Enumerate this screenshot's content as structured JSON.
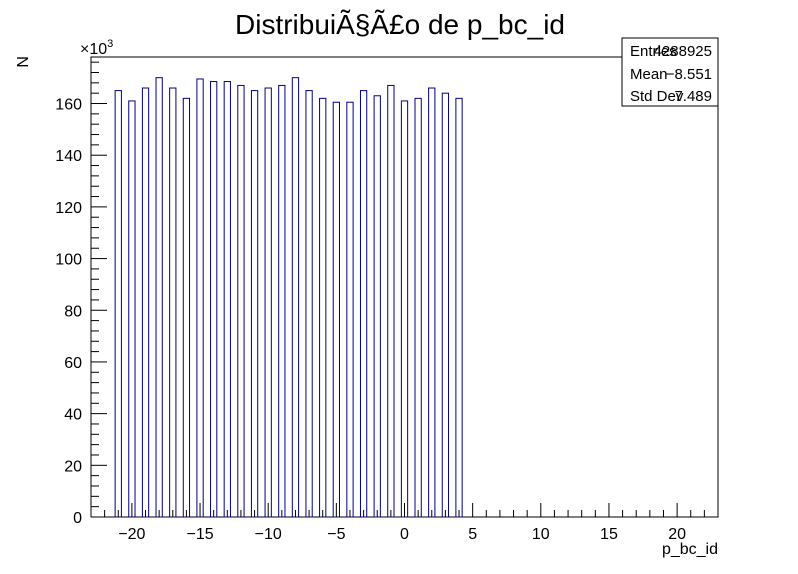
{
  "chart_data": {
    "type": "bar",
    "title": "DistribuiÃ§Ã£o de p_bc_id",
    "xlabel": "p_bc_id",
    "ylabel": "N",
    "y_exponent_label": "×10",
    "y_exponent_power": "3",
    "xlim": [
      -23,
      23
    ],
    "ylim": [
      0,
      178
    ],
    "x_ticks": [
      -20,
      -15,
      -10,
      -5,
      0,
      5,
      10,
      15,
      20
    ],
    "x_tick_labels": [
      "−20",
      "−15",
      "−10",
      "−5",
      "0",
      "5",
      "10",
      "15",
      "20"
    ],
    "y_ticks": [
      0,
      20,
      40,
      60,
      80,
      100,
      120,
      140,
      160
    ],
    "y_tick_labels": [
      "0",
      "20",
      "40",
      "60",
      "80",
      "100",
      "120",
      "140",
      "160"
    ],
    "bin_width": 0.46,
    "x": [
      -21,
      -20,
      -19,
      -18,
      -17,
      -16,
      -15,
      -14,
      -13,
      -12,
      -11,
      -10,
      -9,
      -8,
      -7,
      -6,
      -5,
      -4,
      -3,
      -2,
      -1,
      0,
      1,
      2,
      3,
      4
    ],
    "values": [
      165,
      161,
      166,
      170,
      166,
      162,
      169.5,
      168.5,
      168.5,
      167,
      165,
      166,
      167,
      170,
      165,
      162,
      160.5,
      160.5,
      165,
      163,
      167,
      161,
      162,
      166,
      164,
      162
    ],
    "color": "#000080",
    "grid": false,
    "stats": {
      "entries_label": "Entries",
      "entries_value": "4288925",
      "mean_label": "Mean",
      "mean_value": "−8.551",
      "stddev_label": "Std Dev",
      "stddev_value": "7.489"
    }
  }
}
